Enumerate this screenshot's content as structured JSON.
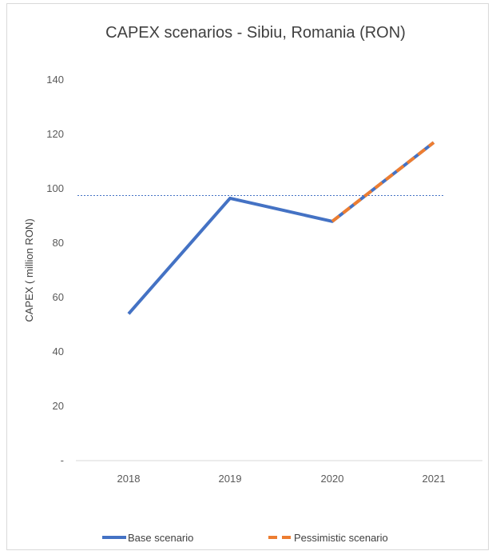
{
  "chart_data": {
    "type": "line",
    "title": "CAPEX scenarios - Sibiu, Romania (RON)",
    "xlabel": "",
    "ylabel": "CAPEX ( million RON)",
    "categories": [
      "2018",
      "2019",
      "2020",
      "2021"
    ],
    "ylim": [
      0,
      140
    ],
    "y_ticks": [
      0,
      20,
      40,
      60,
      80,
      100,
      120,
      140
    ],
    "y_tick_labels": [
      "-",
      "20",
      "40",
      "60",
      "80",
      "100",
      "120",
      "140"
    ],
    "grid": false,
    "legend_position": "bottom",
    "series": [
      {
        "name": "Base scenario",
        "values": [
          54,
          96.5,
          88,
          117
        ],
        "color": "#4472c4",
        "style": "solid"
      },
      {
        "name": "Pessimistic  scenario",
        "values": [
          null,
          null,
          88,
          117
        ],
        "color": "#ed7d31",
        "style": "dashed"
      }
    ],
    "reference_line": {
      "value": 97.5,
      "color": "#4472c4",
      "style": "dotted"
    }
  }
}
